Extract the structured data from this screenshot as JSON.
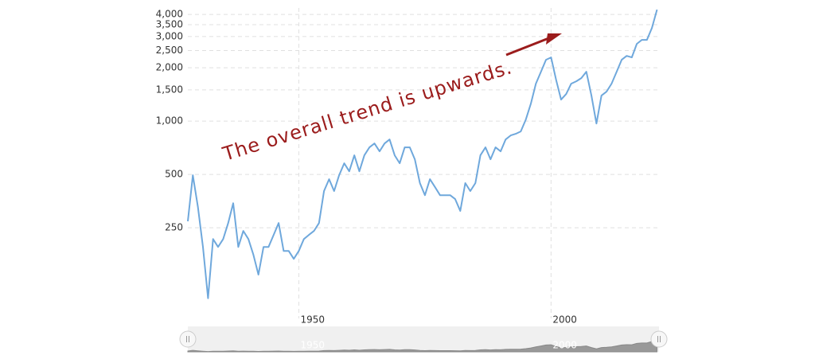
{
  "chart_data": {
    "type": "line",
    "annotation": "The overall trend is upwards.",
    "x": [
      1928,
      1929,
      1930,
      1931,
      1932,
      1933,
      1934,
      1935,
      1936,
      1937,
      1938,
      1939,
      1940,
      1941,
      1942,
      1943,
      1944,
      1945,
      1946,
      1947,
      1948,
      1949,
      1950,
      1951,
      1952,
      1953,
      1954,
      1955,
      1956,
      1957,
      1958,
      1959,
      1960,
      1961,
      1962,
      1963,
      1964,
      1965,
      1966,
      1967,
      1968,
      1969,
      1970,
      1971,
      1972,
      1973,
      1974,
      1975,
      1976,
      1977,
      1978,
      1979,
      1980,
      1981,
      1982,
      1983,
      1984,
      1985,
      1986,
      1987,
      1988,
      1989,
      1990,
      1991,
      1992,
      1993,
      1994,
      1995,
      1996,
      1997,
      1998,
      1999,
      2000,
      2001,
      2002,
      2003,
      2004,
      2005,
      2006,
      2007,
      2008,
      2009,
      2010,
      2011,
      2012,
      2013,
      2014,
      2015,
      2016,
      2017,
      2018,
      2019,
      2020,
      2021
    ],
    "values": [
      272,
      495,
      327,
      195,
      100,
      216,
      195,
      216,
      266,
      344,
      195,
      240,
      216,
      176,
      136,
      195,
      195,
      228,
      266,
      185,
      185,
      167,
      185,
      216,
      228,
      240,
      266,
      403,
      470,
      403,
      495,
      578,
      521,
      641,
      521,
      641,
      711,
      748,
      675,
      748,
      788,
      641,
      578,
      711,
      711,
      609,
      447,
      382,
      470,
      424,
      382,
      382,
      382,
      363,
      311,
      447,
      403,
      447,
      641,
      711,
      609,
      711,
      675,
      788,
      830,
      848,
      874,
      1021,
      1255,
      1627,
      1899,
      2218,
      2288,
      1712,
      1322,
      1422,
      1627,
      1677,
      1749,
      1899,
      1393,
      969,
      1393,
      1466,
      1627,
      1899,
      2218,
      2333,
      2288,
      2727,
      2873,
      2873,
      3354,
      4255
    ],
    "color": "#6fa8dc",
    "xlim": [
      1928,
      2021.4
    ],
    "xticks": [
      1950,
      2000
    ],
    "ylim": [
      77,
      4350
    ],
    "yticks": [
      250,
      500,
      {
        "value": 1000,
        "label": "1,000"
      },
      {
        "value": 1500,
        "label": "1,500"
      },
      {
        "value": 2000,
        "label": "2,000"
      },
      {
        "value": 2500,
        "label": "2,500"
      },
      {
        "value": 3000,
        "label": "3,000"
      },
      {
        "value": 3500,
        "label": "3,500"
      },
      {
        "value": 4000,
        "label": "4,000"
      }
    ],
    "log_y": true,
    "grid": true
  }
}
